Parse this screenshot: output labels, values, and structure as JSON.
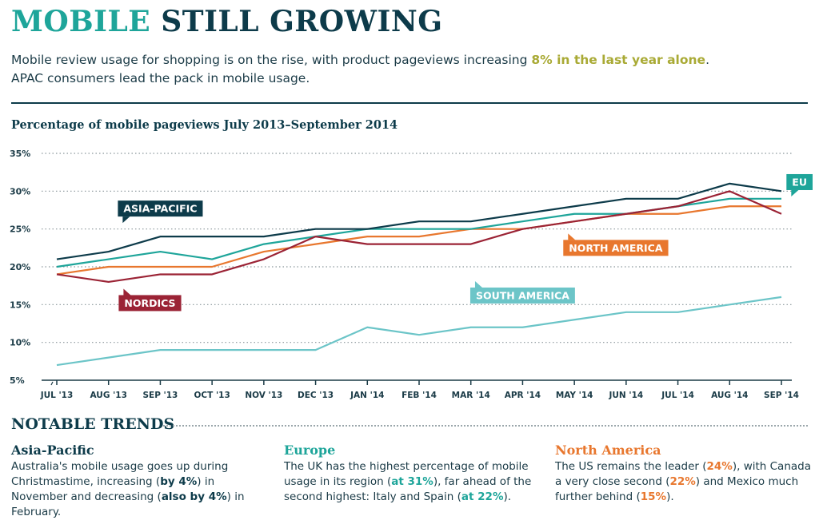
{
  "header": {
    "title_accent": "MOBILE",
    "title_rest": "STILL GROWING",
    "intro_before": "Mobile review usage for shopping is on the rise, with product pageviews increasing ",
    "intro_highlight": "8% in the last year alone",
    "intro_after": ".",
    "intro_line2": "APAC consumers lead the pack in mobile usage."
  },
  "chart_data": {
    "type": "line",
    "title": "Percentage of mobile pageviews July 2013–September 2014",
    "xlabel": "",
    "ylabel": "",
    "categories": [
      "JUL '13",
      "AUG '13",
      "SEP '13",
      "OCT '13",
      "NOV '13",
      "DEC '13",
      "JAN '14",
      "FEB '14",
      "MAR '14",
      "APR '14",
      "MAY '14",
      "JUN '14",
      "JUL '14",
      "AUG '14",
      "SEP '14"
    ],
    "ylim": [
      5,
      35
    ],
    "yticks": [
      5,
      10,
      15,
      20,
      25,
      30,
      35
    ],
    "ytick_labels": [
      "5%",
      "10%",
      "15%",
      "20%",
      "25%",
      "30%",
      "35%"
    ],
    "grid": true,
    "series": [
      {
        "name": "ASIA-PACIFIC",
        "color": "#0d3b4a",
        "values": [
          21,
          22,
          24,
          24,
          24,
          25,
          25,
          26,
          26,
          27,
          28,
          29,
          29,
          31,
          30
        ]
      },
      {
        "name": "EU",
        "color": "#1ea59a",
        "values": [
          20,
          21,
          22,
          21,
          23,
          24,
          25,
          25,
          25,
          26,
          27,
          27,
          28,
          29,
          29
        ]
      },
      {
        "name": "NORTH AMERICA",
        "color": "#e8772e",
        "values": [
          19,
          20,
          20,
          20,
          22,
          23,
          24,
          24,
          25,
          25,
          26,
          27,
          27,
          28,
          28
        ]
      },
      {
        "name": "NORDICS",
        "color": "#9b2335",
        "values": [
          19,
          18,
          19,
          19,
          21,
          24,
          23,
          23,
          23,
          25,
          26,
          27,
          28,
          30,
          27
        ]
      },
      {
        "name": "SOUTH AMERICA",
        "color": "#6cc5c8",
        "values": [
          7,
          8,
          9,
          9,
          9,
          9,
          12,
          11,
          12,
          12,
          13,
          14,
          14,
          15,
          16
        ]
      }
    ],
    "labels": [
      {
        "series": 0,
        "text": "ASIA-PACIFIC",
        "x_index": 2,
        "y": 27.7
      },
      {
        "series": 1,
        "text": "EU",
        "x_index": 14.8,
        "y": 31.2
      },
      {
        "series": 2,
        "text": "NORTH AMERICA",
        "x_index": 10.8,
        "y": 22.5
      },
      {
        "series": 3,
        "text": "NORDICS",
        "x_index": 1.8,
        "y": 15.2
      },
      {
        "series": 4,
        "text": "SOUTH AMERICA",
        "x_index": 9,
        "y": 16.2
      }
    ]
  },
  "trends": {
    "title": "NOTABLE TRENDS",
    "asia_pacific": {
      "heading": "Asia-Pacific",
      "p1": "Australia's mobile usage goes up during Christmastime, increasing (",
      "e1": "by 4%",
      "p2": ") in November and decreasing (",
      "e2": "also by 4%",
      "p3": ") in February."
    },
    "europe": {
      "heading": "Europe",
      "p1": "The UK has the highest percentage of mobile usage in its region (",
      "e1": "at 31%",
      "p2": "), far ahead of the second highest: Italy and Spain (",
      "e2": "at 22%",
      "p3": ")."
    },
    "north_america": {
      "heading": "North America",
      "p1": "The US remains the leader (",
      "e1": "24%",
      "p2": "), with Canada a very close second (",
      "e2": "22%",
      "p3": ") and Mexico much further behind (",
      "e3": "15%",
      "p4": ")."
    }
  }
}
